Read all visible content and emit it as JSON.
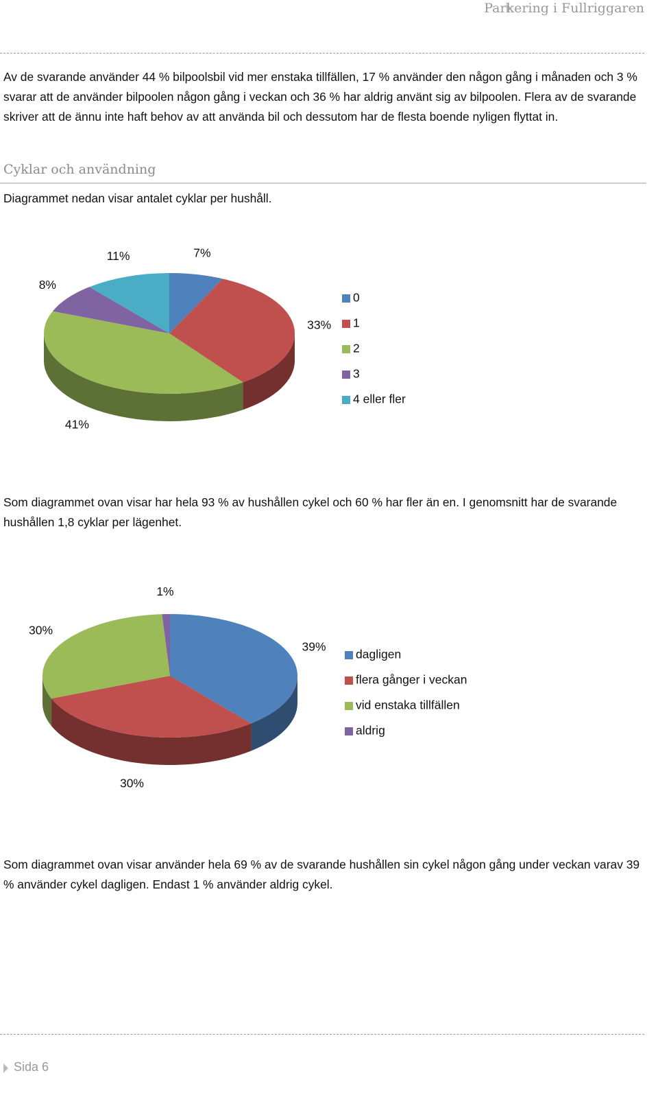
{
  "header": "Parkering i Fullriggaren",
  "paragraphs": [
    "Av de svarande använder 44 % bilpoolsbil vid mer enstaka tillfällen, 17 % använder den någon gång i månaden och 3 % svarar att de använder bilpoolen någon gång i veckan och 36 % har aldrig använt sig av bilpoolen. Flera av de svarande skriver att de ännu inte haft behov av att använda bil och dessutom har de flesta boende nyligen flyttat in.",
    "Diagrammet nedan visar antalet cyklar per hushåll.",
    "Som diagrammet ovan visar har hela 93 % av hushållen cykel och 60 % har fler än en.  I genomsnitt har de svarande hushållen 1,8 cyklar per lägenhet.",
    "Som diagrammet ovan visar använder hela 69 % av de svarande hushållen sin cykel någon gång under veckan varav 39 % använder cykel dagligen. Endast 1 % använder aldrig cykel."
  ],
  "heading": "Cyklar och användning",
  "footer": "Sida 6",
  "chart_data": [
    {
      "type": "pie",
      "categories": [
        "0",
        "1",
        "2",
        "3",
        "4 eller fler"
      ],
      "values": [
        7,
        33,
        41,
        8,
        11
      ],
      "value_labels": [
        "7%",
        "33%",
        "41%",
        "8%",
        "11%"
      ],
      "colors": [
        "#4f81bd",
        "#c0504d",
        "#9bbb59",
        "#8064a2",
        "#4bacc6"
      ]
    },
    {
      "type": "pie",
      "categories": [
        "dagligen",
        "flera gånger i veckan",
        "vid enstaka tillfällen",
        "aldrig"
      ],
      "values": [
        39,
        30,
        30,
        1
      ],
      "value_labels": [
        "39%",
        "30%",
        "30%",
        "1%"
      ],
      "colors": [
        "#4f81bd",
        "#c0504d",
        "#9bbb59",
        "#8064a2"
      ]
    }
  ]
}
